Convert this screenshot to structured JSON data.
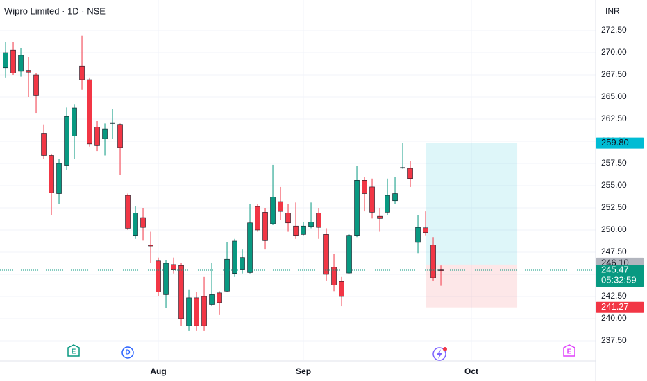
{
  "chart_data": {
    "type": "candlestick",
    "title": "Wipro Limited · 1D · NSE",
    "currency": "INR",
    "up_color": "#089981",
    "down_color": "#f23645",
    "open": [
      268.3,
      270.3,
      267.9,
      268.0,
      267.5,
      260.9,
      258.4,
      254.1,
      257.3,
      260.6,
      268.5,
      266.95,
      261.6,
      260.3,
      262.0,
      261.9,
      253.9,
      249.4,
      251.4,
      248.3,
      246.5,
      242.7,
      246.1,
      246.0,
      239.2,
      242.35,
      242.5,
      241.6,
      242.9,
      243.1,
      245.1,
      245.5,
      245.2,
      252.65,
      252.0,
      250.7,
      253.2,
      251.9,
      250.45,
      249.5,
      250.4,
      251.9,
      249.5,
      245.8,
      244.2,
      245.15,
      249.4,
      255.6,
      254.85,
      251.55,
      252.0,
      253.3,
      257.0,
      256.95,
      248.6,
      250.25,
      248.3,
      245.5
    ],
    "high": [
      271.25,
      271.25,
      270.5,
      269.5,
      267.7,
      261.9,
      258.6,
      258.0,
      263.8,
      264.2,
      271.9,
      267.2,
      262.3,
      262.0,
      263.6,
      262.0,
      254.1,
      252.7,
      252.5,
      249.8,
      246.9,
      246.6,
      246.9,
      246.25,
      243.3,
      243.0,
      244.7,
      246.25,
      243.1,
      248.6,
      249.0,
      247.8,
      252.9,
      252.9,
      252.5,
      257.35,
      254.85,
      252.9,
      253.1,
      250.9,
      253.1,
      252.5,
      250.2,
      247.3,
      244.7,
      249.5,
      257.2,
      256.0,
      255.8,
      252.5,
      255.8,
      256.0,
      259.8,
      257.75,
      251.7,
      252.1,
      249.2,
      246.0
    ],
    "low": [
      267.2,
      267.5,
      267.3,
      265.0,
      263.2,
      258.0,
      251.7,
      252.9,
      256.8,
      258.0,
      265.8,
      259.4,
      258.9,
      258.4,
      260.3,
      256.25,
      250.0,
      249.0,
      248.8,
      246.3,
      242.5,
      241.2,
      245.1,
      239.2,
      238.6,
      238.6,
      238.6,
      241.4,
      240.4,
      243.0,
      244.7,
      245.1,
      245.1,
      249.8,
      247.8,
      250.55,
      251.1,
      249.8,
      249.0,
      249.4,
      250.2,
      249.0,
      244.3,
      243.1,
      241.4,
      245.1,
      249.2,
      252.1,
      251.3,
      249.8,
      251.7,
      252.9,
      256.9,
      254.85,
      247.4,
      249.4,
      244.3,
      243.7
    ],
    "close": [
      270.0,
      267.7,
      269.7,
      267.8,
      265.2,
      258.4,
      254.2,
      257.5,
      262.8,
      263.75,
      266.95,
      259.7,
      259.5,
      261.4,
      262.1,
      259.3,
      250.2,
      251.9,
      250.3,
      248.2,
      243.0,
      246.25,
      245.5,
      240.0,
      242.35,
      239.2,
      239.2,
      242.7,
      241.8,
      246.7,
      248.75,
      246.9,
      250.8,
      250.0,
      248.8,
      253.7,
      252.1,
      250.8,
      249.4,
      250.45,
      250.9,
      250.3,
      245.0,
      243.8,
      242.5,
      249.4,
      255.6,
      254.1,
      252.0,
      251.3,
      253.9,
      254.1,
      257.05,
      255.8,
      250.3,
      249.7,
      244.6,
      245.47
    ],
    "xlim": [
      -0.73,
      77.27
    ],
    "xticks": [
      {
        "value": 20,
        "label": "Aug"
      },
      {
        "value": 39,
        "label": "Sep"
      },
      {
        "value": 61,
        "label": "Oct"
      }
    ],
    "ylim": [
      235.31,
      275.94
    ],
    "yticks": [
      {
        "value": 237.5,
        "label": "237.50"
      },
      {
        "value": 240,
        "label": "240.00"
      },
      {
        "value": 242.5,
        "label": "242.50"
      },
      {
        "value": 245,
        "label": "245.00"
      },
      {
        "value": 247.5,
        "label": "247.50"
      },
      {
        "value": 250,
        "label": "250.00"
      },
      {
        "value": 252.5,
        "label": "252.50"
      },
      {
        "value": 255,
        "label": "255.00"
      },
      {
        "value": 257.5,
        "label": "257.50"
      },
      {
        "value": 260,
        "label": "260.00"
      },
      {
        "value": 262.5,
        "label": "262.50"
      },
      {
        "value": 265,
        "label": "265.00"
      },
      {
        "value": 267.5,
        "label": "267.50"
      },
      {
        "value": 270,
        "label": "270.00"
      },
      {
        "value": 272.5,
        "label": "272.50"
      }
    ],
    "grid": true,
    "position": {
      "start": 55,
      "end": 67,
      "target": {
        "value": 259.8,
        "label": "259.80"
      },
      "entry": {
        "value": 246.1,
        "label": "246.10"
      },
      "stop": {
        "value": 241.27,
        "label": "241.27"
      }
    },
    "last": {
      "value": 245.47,
      "label": "245.47"
    },
    "countdown": "05:32:59",
    "events": [
      "E",
      "D",
      "E"
    ]
  }
}
